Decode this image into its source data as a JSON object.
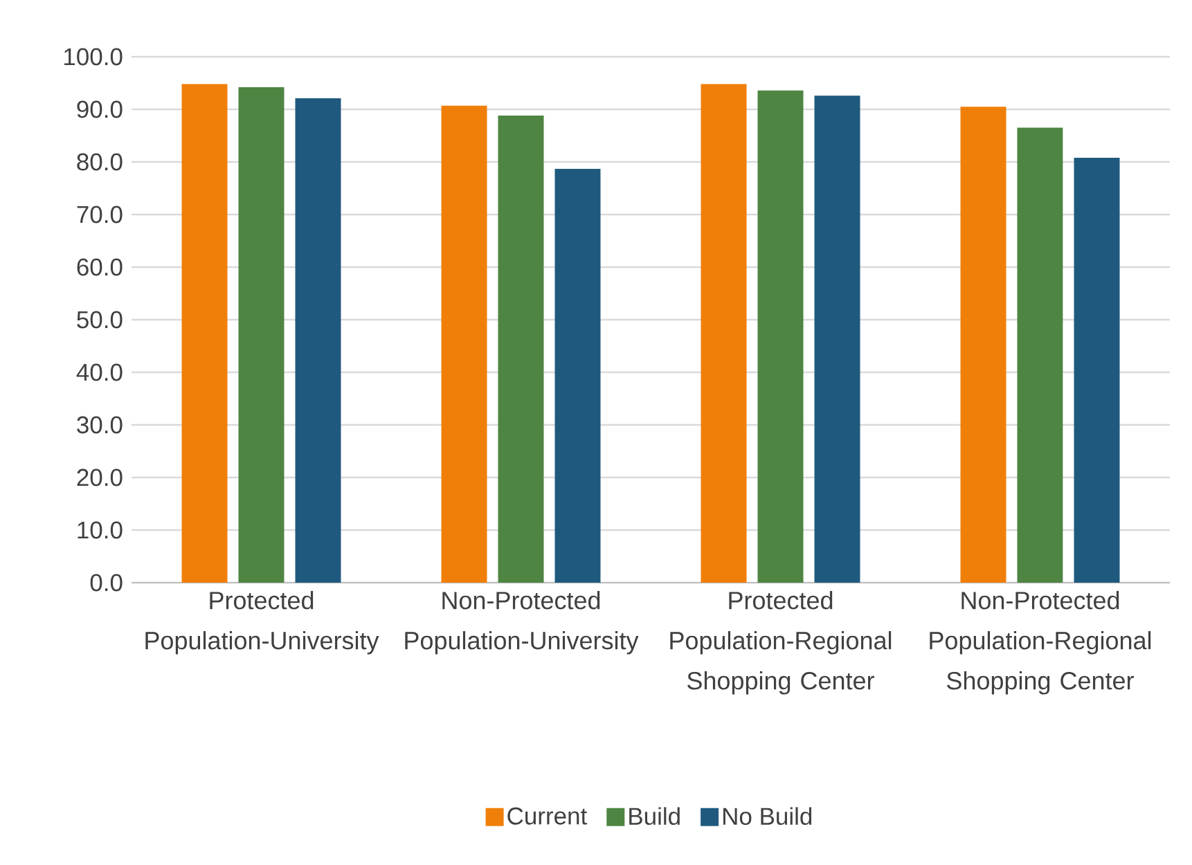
{
  "chart_data": {
    "type": "bar",
    "categories": [
      "Protected Population-University",
      "Non-Protected Population-University",
      "Protected Population-Regional Shopping Center",
      "Non-Protected Population-Regional Shopping Center"
    ],
    "series": [
      {
        "name": "Current",
        "color": "#f07f09",
        "values": [
          94.8,
          90.7,
          94.8,
          90.5
        ]
      },
      {
        "name": "Build",
        "color": "#4e8542",
        "values": [
          94.2,
          88.8,
          93.6,
          86.5
        ]
      },
      {
        "name": "No Build",
        "color": "#1f5a7e",
        "values": [
          92.1,
          78.7,
          92.6,
          80.8
        ]
      }
    ],
    "ylim": [
      0,
      100
    ],
    "yticks": [
      {
        "value": 0,
        "label": "0.0"
      },
      {
        "value": 10,
        "label": "10.0"
      },
      {
        "value": 20,
        "label": "20.0"
      },
      {
        "value": 30,
        "label": "30.0"
      },
      {
        "value": 40,
        "label": "40.0"
      },
      {
        "value": 50,
        "label": "50.0"
      },
      {
        "value": 60,
        "label": "60.0"
      },
      {
        "value": 70,
        "label": "70.0"
      },
      {
        "value": 80,
        "label": "80.0"
      },
      {
        "value": 90,
        "label": "90.0"
      },
      {
        "value": 100,
        "label": "100.0"
      }
    ],
    "grid": "y",
    "legend": "bottom"
  }
}
